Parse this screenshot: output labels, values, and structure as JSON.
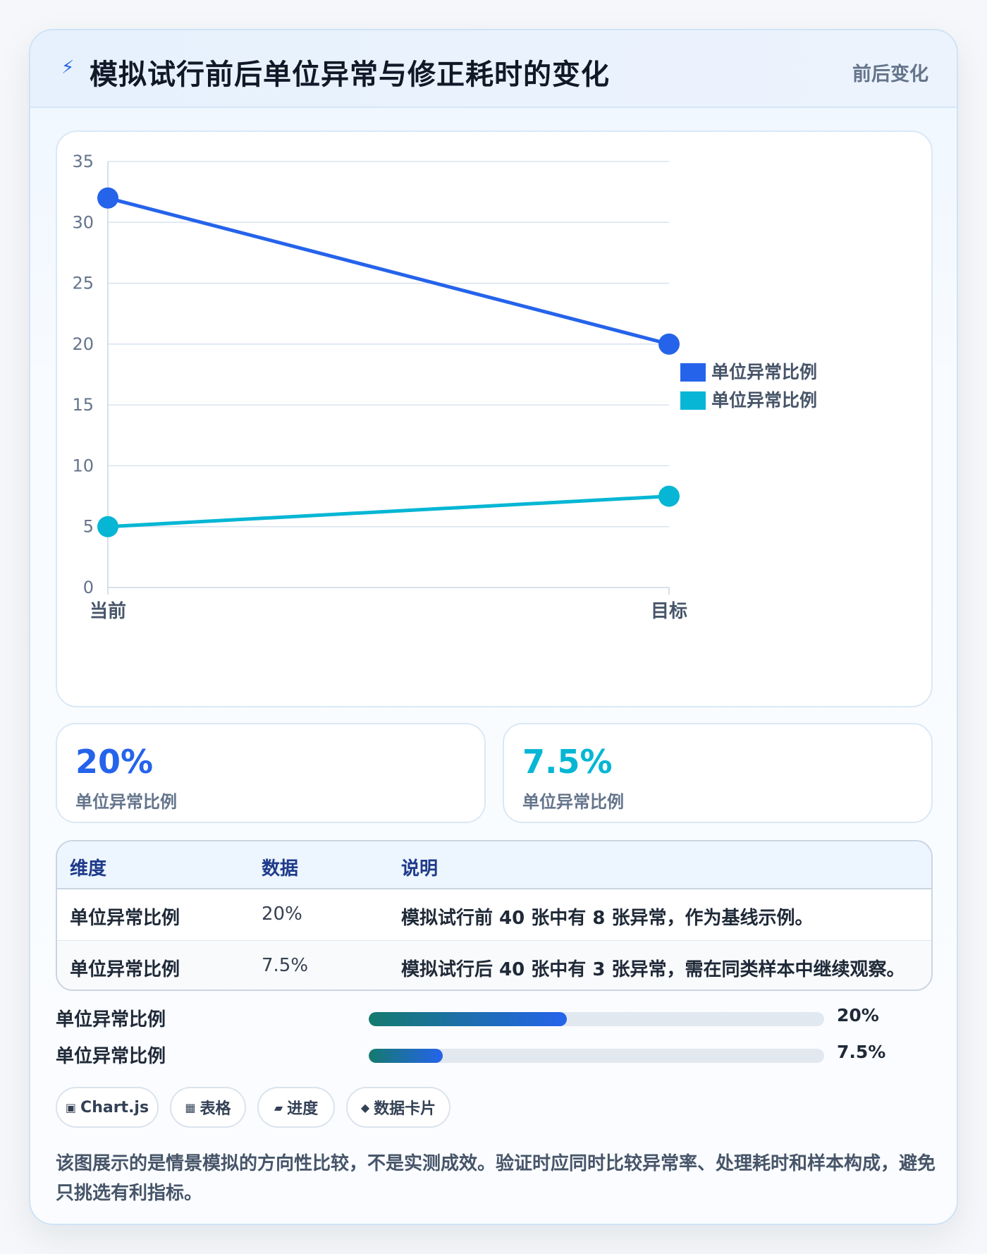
{
  "header": {
    "icon": "lightning-icon",
    "title": "模拟试行前后单位异常与修正耗时的变化",
    "tag": "前后变化"
  },
  "chart_data": {
    "type": "line",
    "categories": [
      "当前",
      "目标"
    ],
    "series": [
      {
        "name": "单位异常比例",
        "values": [
          32,
          20
        ],
        "color": "#2563eb"
      },
      {
        "name": "单位异常比例",
        "values": [
          5,
          7.5
        ],
        "color": "#06b6d4"
      }
    ],
    "ylim": [
      0,
      35
    ],
    "yticks": [
      0,
      5,
      10,
      15,
      20,
      25,
      30,
      35
    ],
    "grid": true,
    "legend_position": "right"
  },
  "kpis": [
    {
      "value": "20%",
      "label": "单位异常比例",
      "color": "#2563eb"
    },
    {
      "value": "7.5%",
      "label": "单位异常比例",
      "color": "#06b6d4"
    }
  ],
  "table": {
    "headers": [
      "维度",
      "数据",
      "说明"
    ],
    "rows": [
      [
        "单位异常比例",
        "20%",
        "模拟试行前 40 张中有 8 张异常，作为基线示例。"
      ],
      [
        "单位异常比例",
        "7.5%",
        "模拟试行后 40 张中有 3 张异常，需在同类样本中继续观察。"
      ]
    ]
  },
  "progress": [
    {
      "label": "单位异常比例",
      "value": "20%",
      "fraction": 0.435
    },
    {
      "label": "单位异常比例",
      "value": "7.5%",
      "fraction": 0.163
    }
  ],
  "chips": [
    {
      "icon": "▣",
      "label": "Chart.js"
    },
    {
      "icon": "▦",
      "label": "表格"
    },
    {
      "icon": "▰",
      "label": "进度"
    },
    {
      "icon": "◆",
      "label": "数据卡片"
    }
  ],
  "note": "该图展示的是情景模拟的方向性比较，不是实测成效。验证时应同时比较异常率、处理耗时和样本构成，避免只挑选有利指标。"
}
